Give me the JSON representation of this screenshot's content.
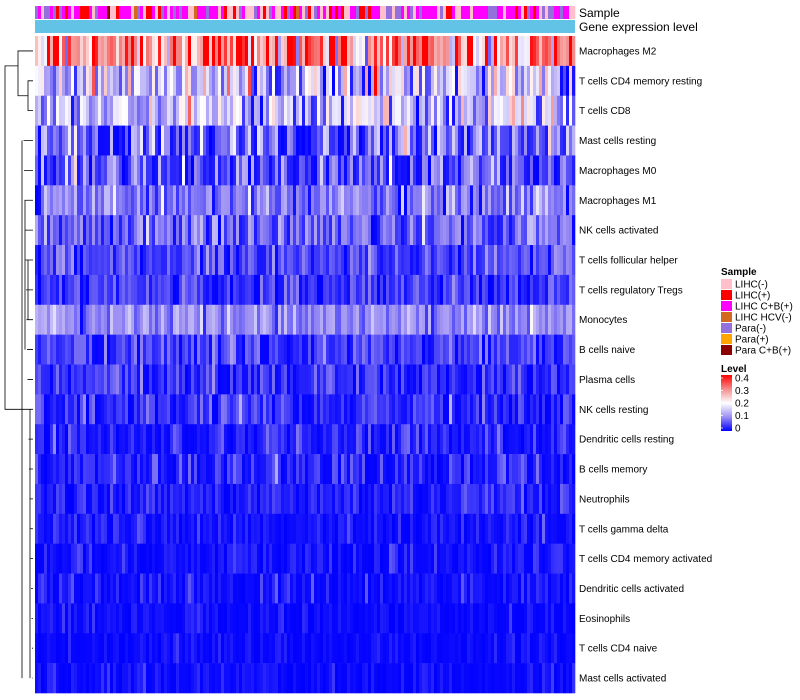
{
  "chart_data": {
    "type": "heatmap",
    "title": "",
    "column_annotations": [
      "Sample",
      "Gene expression level"
    ],
    "rows": [
      {
        "name": "Macrophages M2",
        "mean": 0.3,
        "spread": 0.1
      },
      {
        "name": "T cells CD4 memory resting",
        "mean": 0.14,
        "spread": 0.07
      },
      {
        "name": "T cells CD8",
        "mean": 0.14,
        "spread": 0.06
      },
      {
        "name": "Mast cells resting",
        "mean": 0.06,
        "spread": 0.07
      },
      {
        "name": "Macrophages M0",
        "mean": 0.05,
        "spread": 0.06
      },
      {
        "name": "Macrophages M1",
        "mean": 0.08,
        "spread": 0.04
      },
      {
        "name": "NK cells activated",
        "mean": 0.07,
        "spread": 0.04
      },
      {
        "name": "T cells follicular helper",
        "mean": 0.05,
        "spread": 0.03
      },
      {
        "name": "T cells regulatory  Tregs",
        "mean": 0.04,
        "spread": 0.03
      },
      {
        "name": "Monocytes",
        "mean": 0.1,
        "spread": 0.03
      },
      {
        "name": "B cells naive",
        "mean": 0.04,
        "spread": 0.03
      },
      {
        "name": "Plasma cells",
        "mean": 0.03,
        "spread": 0.03
      },
      {
        "name": "NK cells resting",
        "mean": 0.03,
        "spread": 0.03
      },
      {
        "name": "Dendritic cells resting",
        "mean": 0.02,
        "spread": 0.03
      },
      {
        "name": "B cells memory",
        "mean": 0.02,
        "spread": 0.03
      },
      {
        "name": "Neutrophils",
        "mean": 0.02,
        "spread": 0.02
      },
      {
        "name": "T cells gamma delta",
        "mean": 0.01,
        "spread": 0.02
      },
      {
        "name": "T cells CD4 memory activated",
        "mean": 0.01,
        "spread": 0.02
      },
      {
        "name": "Dendritic cells activated",
        "mean": 0.01,
        "spread": 0.02
      },
      {
        "name": "Eosinophils",
        "mean": 0.005,
        "spread": 0.015
      },
      {
        "name": "T cells CD4 naive",
        "mean": 0.005,
        "spread": 0.015
      },
      {
        "name": "Mast cells activated",
        "mean": 0.005,
        "spread": 0.015
      }
    ],
    "n_samples": 180,
    "color_scale": {
      "min": 0,
      "max": 0.4,
      "stops": [
        {
          "value": 0,
          "color": "#0000ff"
        },
        {
          "value": 0.1,
          "color": "#9c8ff2"
        },
        {
          "value": 0.2,
          "color": "#ffffff"
        },
        {
          "value": 0.3,
          "color": "#f48c8c"
        },
        {
          "value": 0.4,
          "color": "#ff0000"
        }
      ]
    },
    "gene_expression_color": "#63c3e6",
    "legend": {
      "sample": {
        "title": "Sample",
        "items": [
          {
            "label": "LIHC(-)",
            "color": "#ffc0cb"
          },
          {
            "label": "LIHC(+)",
            "color": "#ff0000"
          },
          {
            "label": "LIHC C+B(+)",
            "color": "#ff00ff"
          },
          {
            "label": "LIHC HCV(-)",
            "color": "#d2691e"
          },
          {
            "label": "Para(-)",
            "color": "#9370db"
          },
          {
            "label": "Para(+)",
            "color": "#ffa500"
          },
          {
            "label": "Para C+B(+)",
            "color": "#8b0000"
          }
        ]
      },
      "level": {
        "title": "Level",
        "ticks": [
          "0.4",
          "0.3",
          "0.2",
          "0.1",
          "0"
        ]
      }
    }
  }
}
